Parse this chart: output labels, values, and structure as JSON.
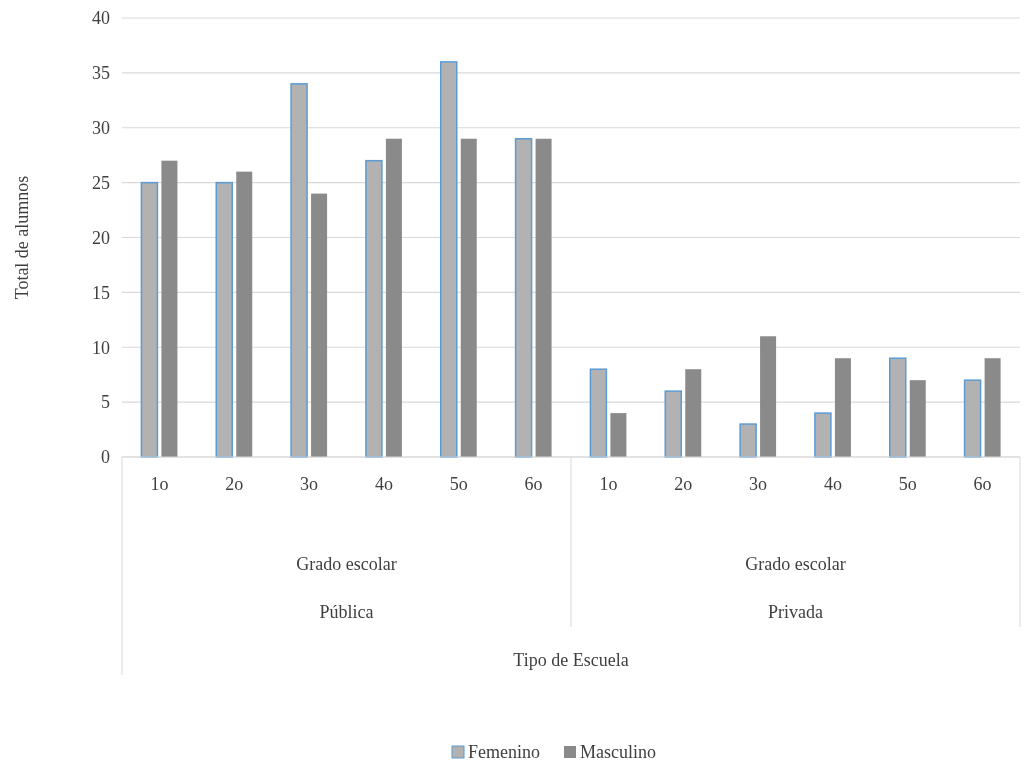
{
  "chart_data": {
    "type": "bar",
    "ylabel": "Total de alumnos",
    "categories": [
      "1o",
      "2o",
      "3o",
      "4o",
      "5o",
      "6o",
      "1o",
      "2o",
      "3o",
      "4o",
      "5o",
      "6o"
    ],
    "series": [
      {
        "name": "Femenino",
        "color": "#b2b2b2",
        "values": [
          25,
          25,
          34,
          27,
          36,
          29,
          8,
          6,
          3,
          4,
          9,
          7
        ]
      },
      {
        "name": "Masculino",
        "color": "#8a8a8a",
        "values": [
          27,
          26,
          24,
          29,
          29,
          29,
          4,
          8,
          11,
          9,
          7,
          9
        ]
      }
    ],
    "annotations": [
      "Grado escolar",
      "Pública",
      "Grado escolar",
      "Privada",
      "Tipo de Escuela"
    ],
    "ylim": [
      0,
      40
    ],
    "yticks": [
      0,
      5,
      10,
      15,
      20,
      25,
      30,
      35,
      40
    ],
    "grid": "y",
    "legend": "bottom"
  }
}
